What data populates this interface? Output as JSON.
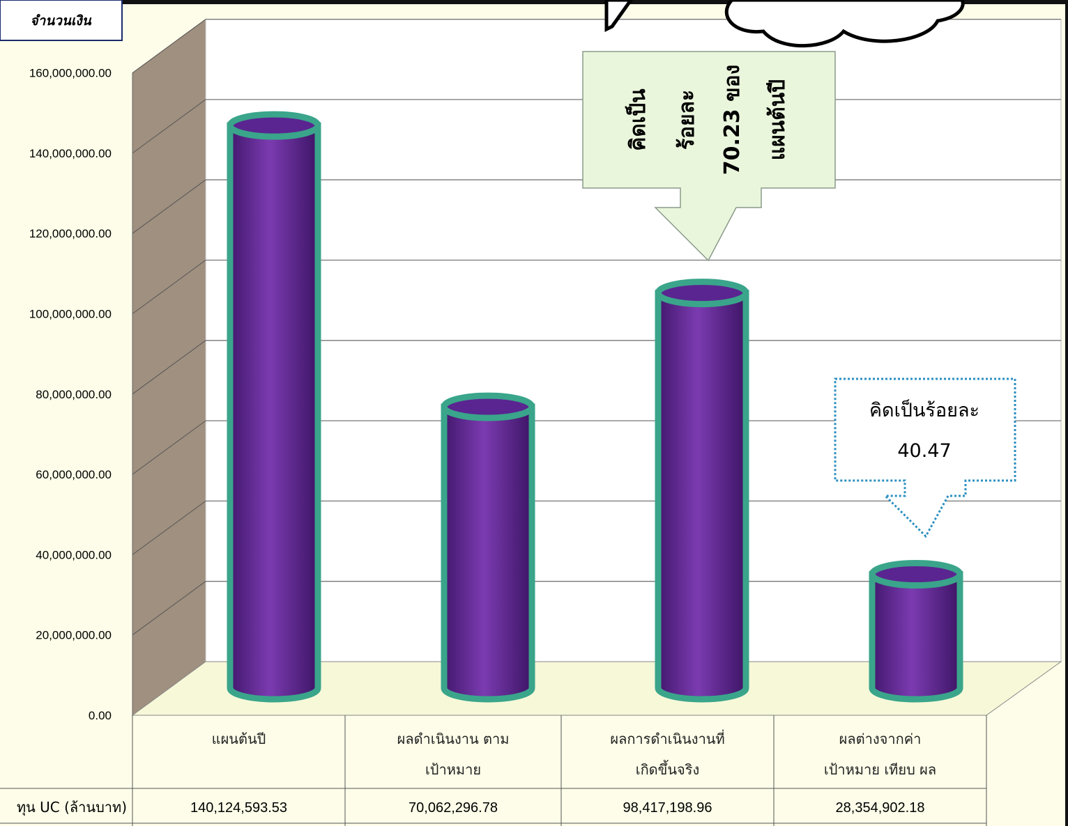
{
  "chart_data": {
    "type": "bar",
    "ylabel": "จำนวนเงิน",
    "ylim": [
      0,
      160000000
    ],
    "yticks": [
      "0.00",
      "20,000,000.00",
      "40,000,000.00",
      "60,000,000.00",
      "80,000,000.00",
      "100,000,000.00",
      "120,000,000.00",
      "140,000,000.00",
      "160,000,000.00"
    ],
    "categories": [
      [
        "แผนต้นปี"
      ],
      [
        "ผลดำเนินงาน ตาม",
        "เป้าหมาย"
      ],
      [
        "ผลการดำเนินงานที่",
        "เกิดขึ้นจริง"
      ],
      [
        "ผลต่างจากค่า",
        "เป้าหมาย เทียบ ผล"
      ]
    ],
    "series": [
      {
        "name": "ทุน UC (ล้านบาท)",
        "values": [
          140124593.53,
          70062296.78,
          98417198.96,
          28354902.18
        ],
        "value_labels": [
          "140,124,593.53",
          "70,062,296.78",
          "98,417,198.96",
          "28,354,902.18"
        ]
      }
    ],
    "grid": true,
    "colors": {
      "bar_fill": "#6a2fa0",
      "bar_outline": "#3aa58a",
      "back_wall": "#ffffff",
      "side_wall": "#a09080",
      "floor": "#f6f8d8",
      "page_bg": "#fdfde9"
    },
    "annotations": [
      {
        "target": 2,
        "lines": [
          "คิดเป็น",
          "ร้อยละ",
          "70.23 ของ",
          "แผนต้นปี"
        ],
        "fill": "#eaf6dc"
      },
      {
        "target": 3,
        "lines": [
          "คิดเป็นร้อยละ",
          "40.47"
        ],
        "fill": "#ffffff",
        "border": "#2a8fc0"
      }
    ]
  }
}
